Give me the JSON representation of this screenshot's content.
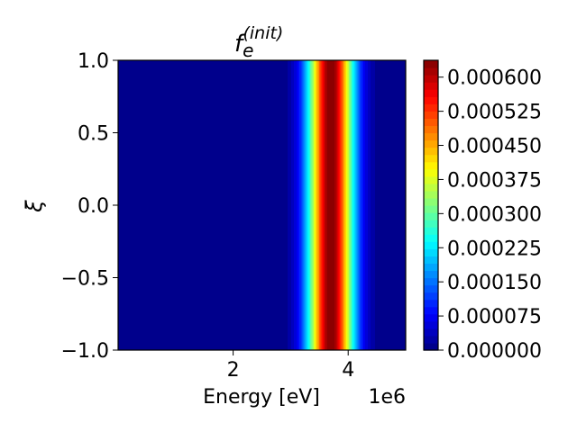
{
  "chart_data": {
    "type": "heatmap",
    "title_base": "f",
    "title_sub": "e",
    "title_sup": "(init)",
    "xlabel": "Energy [eV]",
    "ylabel": "ξ",
    "x_offset_label": "1e6",
    "xlim": [
      0,
      5000000
    ],
    "ylim": [
      -1.0,
      1.0
    ],
    "x_ticks": [
      {
        "value": 2000000,
        "label": "2"
      },
      {
        "value": 4000000,
        "label": "4"
      }
    ],
    "y_ticks": [
      {
        "value": 1.0,
        "label": "1.0"
      },
      {
        "value": 0.5,
        "label": "0.5"
      },
      {
        "value": 0.0,
        "label": "0.0"
      },
      {
        "value": -0.5,
        "label": "−0.5"
      },
      {
        "value": -1.0,
        "label": "−1.0"
      }
    ],
    "colormap": "jet",
    "colorbar": {
      "min": 0.0,
      "max": 0.000637,
      "levels": 40,
      "ticks": [
        {
          "value": 0.0,
          "label": "0.000000"
        },
        {
          "value": 7.5e-05,
          "label": "0.000075"
        },
        {
          "value": 0.00015,
          "label": "0.000150"
        },
        {
          "value": 0.000225,
          "label": "0.000225"
        },
        {
          "value": 0.0003,
          "label": "0.000300"
        },
        {
          "value": 0.000375,
          "label": "0.000375"
        },
        {
          "value": 0.00045,
          "label": "0.000450"
        },
        {
          "value": 0.000525,
          "label": "0.000525"
        },
        {
          "value": 0.0006,
          "label": "0.000600"
        }
      ]
    },
    "distribution": {
      "peak_energy": 3700000,
      "sigma_energy": 280000,
      "peak_value": 0.000637,
      "uniform_in_xi": true
    }
  }
}
